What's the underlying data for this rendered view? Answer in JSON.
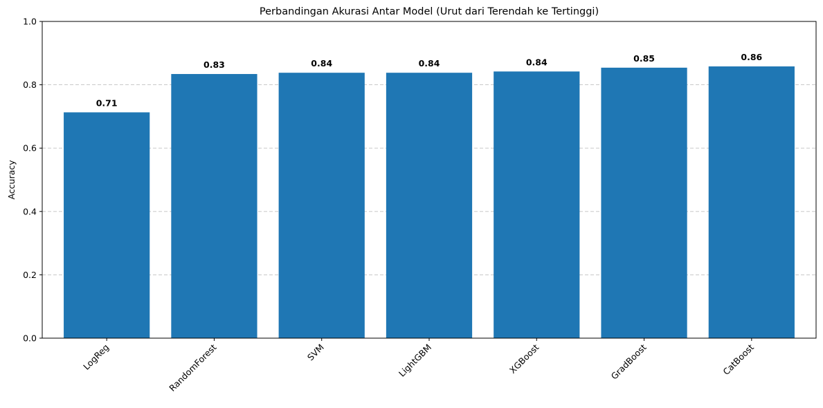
{
  "chart_data": {
    "type": "bar",
    "title": "Perbandingan Akurasi Antar Model (Urut dari Terendah ke Tertinggi)",
    "xlabel": "",
    "ylabel": "Accuracy",
    "categories": [
      "LogReg",
      "RandomForest",
      "SVM",
      "LightGBM",
      "XGBoost",
      "GradBoost",
      "CatBoost"
    ],
    "values": [
      0.713,
      0.834,
      0.838,
      0.838,
      0.842,
      0.854,
      0.858
    ],
    "data_labels": [
      "0.71",
      "0.83",
      "0.84",
      "0.84",
      "0.84",
      "0.85",
      "0.86"
    ],
    "ylim": [
      0,
      1.0
    ],
    "yticks": [
      "0.0",
      "0.2",
      "0.4",
      "0.6",
      "0.8",
      "1.0"
    ],
    "grid": "y-dashed",
    "x_tick_rotation": "45deg",
    "colors": {
      "bar": "#1f77b4",
      "grid": "#c0c0c0",
      "axis": "#000000"
    }
  }
}
